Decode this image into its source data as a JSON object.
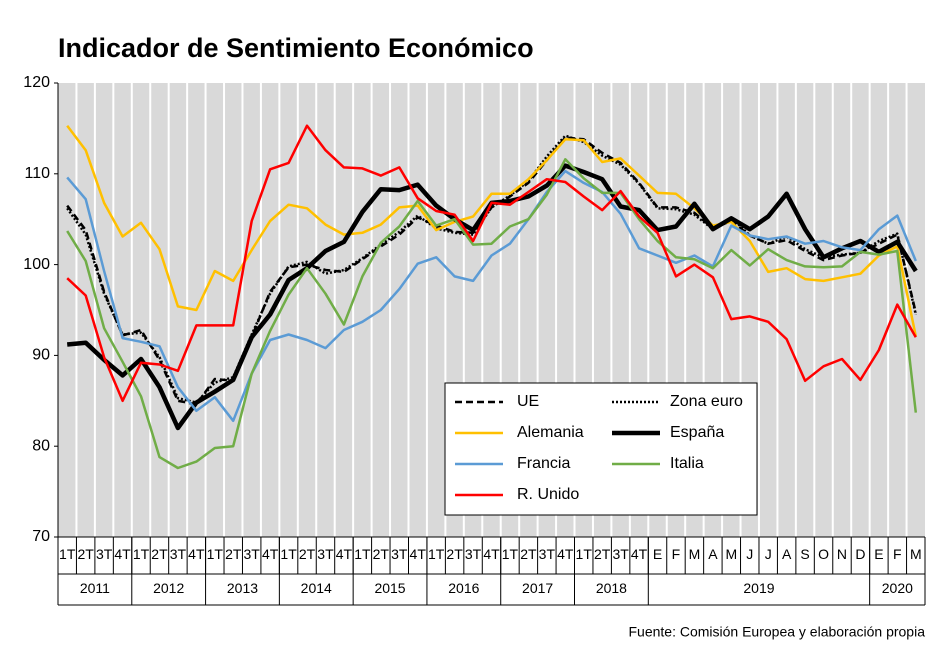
{
  "chart_data": {
    "type": "line",
    "title": "Indicador de Sentimiento Económico",
    "source": "Fuente: Comisión Europea y elaboración propia",
    "groups": [
      {
        "label": "2011",
        "categories": [
          "1T",
          "2T",
          "3T",
          "4T"
        ]
      },
      {
        "label": "2012",
        "categories": [
          "1T",
          "2T",
          "3T",
          "4T"
        ]
      },
      {
        "label": "2013",
        "categories": [
          "1T",
          "2T",
          "3T",
          "4T"
        ]
      },
      {
        "label": "2014",
        "categories": [
          "1T",
          "2T",
          "3T",
          "4T"
        ]
      },
      {
        "label": "2015",
        "categories": [
          "1T",
          "2T",
          "3T",
          "4T"
        ]
      },
      {
        "label": "2016",
        "categories": [
          "1T",
          "2T",
          "3T",
          "4T"
        ]
      },
      {
        "label": "2017",
        "categories": [
          "1T",
          "2T",
          "3T",
          "4T"
        ]
      },
      {
        "label": "2018",
        "categories": [
          "1T",
          "2T",
          "3T",
          "4T"
        ]
      },
      {
        "label": "2019",
        "categories": [
          "E",
          "F",
          "M",
          "A",
          "M",
          "J",
          "J",
          "A",
          "S",
          "O",
          "N",
          "D"
        ]
      },
      {
        "label": "2020",
        "categories": [
          "E",
          "F",
          "M"
        ]
      }
    ],
    "ylim": [
      70,
      120
    ],
    "yticks": [
      70,
      80,
      90,
      100,
      110,
      120
    ],
    "series": [
      {
        "name": "UE",
        "color": "#000000",
        "dash": "dashed",
        "weight": "normal",
        "values": [
          106.5,
          103.8,
          97.0,
          92.2,
          92.8,
          89.5,
          85.0,
          84.6,
          87.4,
          87.2,
          92.0,
          97.0,
          99.7,
          100.0,
          99.4,
          99.2,
          100.6,
          102.0,
          103.3,
          105.2,
          104.3,
          103.6,
          103.5,
          106.3,
          107.5,
          109.0,
          111.5,
          114.0,
          113.8,
          112.3,
          111.2,
          109.0,
          106.3,
          106.3,
          105.7,
          104.0,
          104.8,
          103.2,
          102.3,
          102.7,
          101.5,
          100.5,
          101.0,
          101.3,
          102.3,
          103.3,
          94.7
        ]
      },
      {
        "name": "Zona euro",
        "color": "#000000",
        "dash": "dotted",
        "weight": "normal",
        "values": [
          106.2,
          103.3,
          96.8,
          92.3,
          92.5,
          89.8,
          85.3,
          84.8,
          87.0,
          87.6,
          92.3,
          96.8,
          99.8,
          100.3,
          99.0,
          99.4,
          100.7,
          102.2,
          103.6,
          105.4,
          104.0,
          103.5,
          103.3,
          106.3,
          107.6,
          109.2,
          111.9,
          114.2,
          113.5,
          112.0,
          111.0,
          108.9,
          106.2,
          106.1,
          105.5,
          103.9,
          105.2,
          103.2,
          102.3,
          103.1,
          101.7,
          100.8,
          101.1,
          101.3,
          102.6,
          103.4,
          94.5
        ]
      },
      {
        "name": "Alemania",
        "color": "#ffc000",
        "dash": "solid",
        "weight": "normal",
        "values": [
          115.3,
          112.6,
          106.8,
          103.1,
          104.6,
          101.7,
          95.4,
          95.0,
          99.3,
          98.2,
          101.6,
          104.8,
          106.6,
          106.2,
          104.4,
          103.3,
          103.5,
          104.4,
          106.3,
          106.5,
          103.8,
          104.7,
          105.3,
          107.8,
          107.8,
          109.4,
          111.5,
          113.8,
          113.7,
          111.3,
          111.7,
          109.8,
          107.9,
          107.8,
          106.2,
          104.3,
          104.7,
          102.6,
          99.2,
          99.6,
          98.4,
          98.2,
          98.6,
          99.0,
          101.0,
          102.0,
          92.1
        ]
      },
      {
        "name": "España",
        "color": "#000000",
        "dash": "solid",
        "weight": "bold",
        "values": [
          91.2,
          91.4,
          89.5,
          87.8,
          89.6,
          86.5,
          82.0,
          84.8,
          86.0,
          87.3,
          92.0,
          94.5,
          98.3,
          99.6,
          101.5,
          102.5,
          105.8,
          108.3,
          108.2,
          108.8,
          106.5,
          105.0,
          103.8,
          106.8,
          107.0,
          107.5,
          108.7,
          110.9,
          110.2,
          109.4,
          106.4,
          106.0,
          103.8,
          104.2,
          106.7,
          103.9,
          105.1,
          103.9,
          105.3,
          107.8,
          103.9,
          100.8,
          101.8,
          102.6,
          101.4,
          102.5,
          99.3
        ]
      },
      {
        "name": "Francia",
        "color": "#5b9bd5",
        "dash": "solid",
        "weight": "normal",
        "values": [
          109.6,
          107.2,
          99.3,
          91.9,
          91.5,
          91.0,
          86.5,
          83.9,
          85.4,
          82.8,
          88.0,
          91.7,
          92.3,
          91.7,
          90.8,
          92.8,
          93.7,
          95.0,
          97.3,
          100.1,
          100.8,
          98.7,
          98.2,
          101.0,
          102.3,
          105.0,
          108.0,
          110.3,
          109.0,
          108.0,
          105.6,
          101.8,
          101.0,
          100.2,
          101.0,
          99.8,
          104.3,
          103.2,
          102.8,
          103.1,
          102.3,
          102.6,
          101.9,
          101.6,
          103.9,
          105.4,
          100.4
        ]
      },
      {
        "name": "Italia",
        "color": "#70ad47",
        "dash": "solid",
        "weight": "normal",
        "values": [
          103.7,
          100.4,
          93.0,
          89.3,
          85.5,
          78.8,
          77.6,
          78.3,
          79.8,
          80.0,
          88.0,
          92.7,
          96.7,
          99.6,
          96.8,
          93.4,
          98.7,
          102.4,
          104.2,
          107.0,
          104.3,
          105.0,
          102.2,
          102.3,
          104.2,
          105.0,
          107.7,
          111.6,
          109.5,
          107.9,
          107.9,
          105.0,
          102.6,
          100.8,
          100.6,
          99.6,
          101.6,
          99.9,
          101.7,
          100.5,
          99.8,
          99.7,
          99.8,
          101.4,
          101.1,
          101.5,
          83.7
        ]
      },
      {
        "name": "R. Unido",
        "color": "#ff0000",
        "dash": "solid",
        "weight": "normal",
        "values": [
          98.5,
          96.6,
          89.8,
          85.0,
          89.2,
          89.0,
          88.3,
          93.3,
          93.3,
          93.3,
          104.8,
          110.5,
          111.2,
          115.3,
          112.6,
          110.7,
          110.6,
          109.8,
          110.7,
          107.3,
          105.9,
          105.5,
          102.6,
          106.8,
          106.6,
          108.0,
          109.4,
          109.1,
          107.5,
          106.0,
          108.1,
          105.3,
          103.5,
          98.7,
          100.0,
          98.6,
          94.0,
          94.3,
          93.7,
          91.8,
          87.2,
          88.8,
          89.6,
          87.3,
          90.6,
          95.6,
          92.0
        ]
      }
    ]
  }
}
